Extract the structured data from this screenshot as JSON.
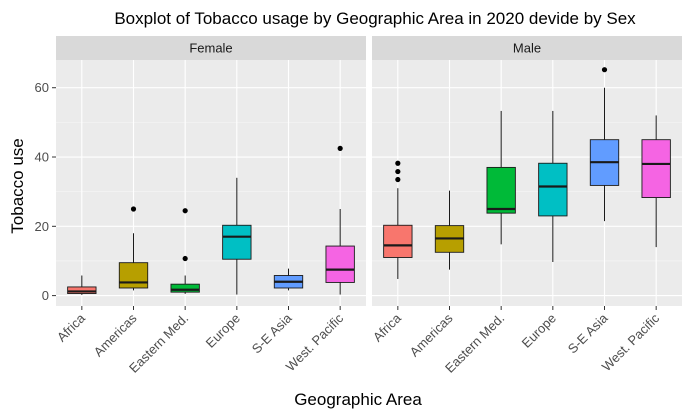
{
  "chart_data": {
    "type": "boxplot",
    "title": "Boxplot of Tobacco usage by Geographic Area in 2020 devide by Sex",
    "xlabel": "Geographic Area",
    "ylabel": "Tobacco use",
    "ylim": [
      -3,
      68
    ],
    "yticks": [
      0,
      20,
      40,
      60
    ],
    "categories": [
      "Africa",
      "Americas",
      "Eastern Med.",
      "Europe",
      "S-E Asia",
      "West. Pacific"
    ],
    "colors": [
      "#F8766D",
      "#B79F00",
      "#00BA38",
      "#00BFC4",
      "#619CFF",
      "#F564E3"
    ],
    "panels": [
      {
        "name": "Female",
        "boxes": [
          {
            "category": "Africa",
            "whisker_low": 0.2,
            "q1": 0.6,
            "median": 1.2,
            "q3": 2.5,
            "whisker_high": 5.8,
            "outliers": []
          },
          {
            "category": "Americas",
            "whisker_low": 1.5,
            "q1": 2.2,
            "median": 3.8,
            "q3": 9.5,
            "whisker_high": 18.0,
            "outliers": [
              25.0
            ]
          },
          {
            "category": "Eastern Med.",
            "whisker_low": 0.5,
            "q1": 1.0,
            "median": 1.7,
            "q3": 3.3,
            "whisker_high": 5.8,
            "outliers": [
              10.7,
              24.5
            ]
          },
          {
            "category": "Europe",
            "whisker_low": 0.3,
            "q1": 10.5,
            "median": 17.0,
            "q3": 20.3,
            "whisker_high": 34.0,
            "outliers": []
          },
          {
            "category": "S-E Asia",
            "whisker_low": 1.5,
            "q1": 2.2,
            "median": 4.0,
            "q3": 5.8,
            "whisker_high": 7.8,
            "outliers": []
          },
          {
            "category": "West. Pacific",
            "whisker_low": 0.3,
            "q1": 3.8,
            "median": 7.5,
            "q3": 14.3,
            "whisker_high": 25.0,
            "outliers": [
              42.5
            ]
          }
        ]
      },
      {
        "name": "Male",
        "boxes": [
          {
            "category": "Africa",
            "whisker_low": 4.8,
            "q1": 11.0,
            "median": 14.5,
            "q3": 20.3,
            "whisker_high": 31.0,
            "outliers": [
              33.5,
              35.8,
              38.2
            ]
          },
          {
            "category": "Americas",
            "whisker_low": 7.5,
            "q1": 12.5,
            "median": 16.5,
            "q3": 20.2,
            "whisker_high": 30.3,
            "outliers": []
          },
          {
            "category": "Eastern Med.",
            "whisker_low": 14.8,
            "q1": 23.8,
            "median": 25.0,
            "q3": 37.0,
            "whisker_high": 53.3,
            "outliers": []
          },
          {
            "category": "Europe",
            "whisker_low": 9.7,
            "q1": 23.0,
            "median": 31.5,
            "q3": 38.2,
            "whisker_high": 53.3,
            "outliers": []
          },
          {
            "category": "S-E Asia",
            "whisker_low": 21.5,
            "q1": 31.8,
            "median": 38.5,
            "q3": 45.0,
            "whisker_high": 60.0,
            "outliers": [
              65.2
            ]
          },
          {
            "category": "West. Pacific",
            "whisker_low": 14.0,
            "q1": 28.3,
            "median": 38.0,
            "q3": 45.0,
            "whisker_high": 52.0,
            "outliers": []
          }
        ]
      }
    ]
  }
}
